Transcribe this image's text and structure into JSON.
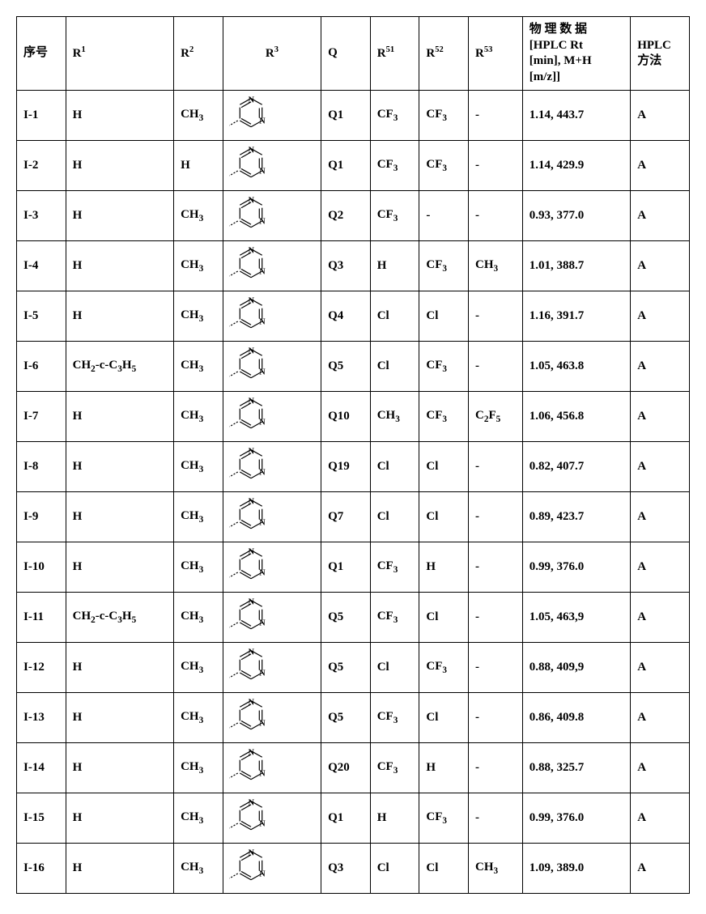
{
  "headers": {
    "seq": "序号",
    "r1": "R",
    "r1_sup": "1",
    "r2": "R",
    "r2_sup": "2",
    "r3": "R",
    "r3_sup": "3",
    "q": "Q",
    "r51": "R",
    "r51_sup": "51",
    "r52": "R",
    "r52_sup": "52",
    "r53": "R",
    "r53_sup": "53",
    "hplc_line1": "物 理 数 据",
    "hplc_line2": "[HPLC  Rt",
    "hplc_line3": "[min], M+H",
    "hplc_line4": "[m/z]]",
    "method_line1": "HPLC",
    "method_line2": "方法"
  },
  "rows": [
    {
      "seq": "I-1",
      "r1": "H",
      "r2": "CH",
      "r2_sub": "3",
      "r3": "pyrimidine",
      "q": "Q1",
      "r51": "CF",
      "r51_sub": "3",
      "r52": "CF",
      "r52_sub": "3",
      "r53": "-",
      "hplc": "1.14, 443.7",
      "method": "A"
    },
    {
      "seq": "I-2",
      "r1": "H",
      "r2": "H",
      "r2_sub": "",
      "r3": "pyrimidine",
      "q": "Q1",
      "r51": "CF",
      "r51_sub": "3",
      "r52": "CF",
      "r52_sub": "3",
      "r53": "-",
      "hplc": "1.14, 429.9",
      "method": "A"
    },
    {
      "seq": "I-3",
      "r1": "H",
      "r2": "CH",
      "r2_sub": "3",
      "r3": "pyrimidine",
      "q": "Q2",
      "r51": "CF",
      "r51_sub": "3",
      "r52": "-",
      "r52_sub": "",
      "r53": "-",
      "hplc": "0.93, 377.0",
      "method": "A"
    },
    {
      "seq": "I-4",
      "r1": "H",
      "r2": "CH",
      "r2_sub": "3",
      "r3": "pyrimidine",
      "q": "Q3",
      "r51": "H",
      "r51_sub": "",
      "r52": "CF",
      "r52_sub": "3",
      "r53": "CH",
      "r53_sub": "3",
      "hplc": "1.01, 388.7",
      "method": "A"
    },
    {
      "seq": "I-5",
      "r1": "H",
      "r2": "CH",
      "r2_sub": "3",
      "r3": "pyrimidine",
      "q": "Q4",
      "r51": "Cl",
      "r51_sub": "",
      "r52": "Cl",
      "r52_sub": "",
      "r53": "-",
      "hplc": "1.16, 391.7",
      "method": "A"
    },
    {
      "seq": "I-6",
      "r1": "CH",
      "r1_sub": "2",
      "r1_suffix": "-c-C",
      "r1_sub2": "3",
      "r1_suffix2": "H",
      "r1_sub3": "5",
      "r2": "CH",
      "r2_sub": "3",
      "r3": "pyrimidine",
      "q": "Q5",
      "r51": "Cl",
      "r51_sub": "",
      "r52": "CF",
      "r52_sub": "3",
      "r53": "-",
      "hplc": "1.05, 463.8",
      "method": "A"
    },
    {
      "seq": "I-7",
      "r1": "H",
      "r2": "CH",
      "r2_sub": "3",
      "r3": "pyrimidine",
      "q": "Q10",
      "r51": "CH",
      "r51_sub": "3",
      "r52": "CF",
      "r52_sub": "3",
      "r53": "C",
      "r53_sub": "2",
      "r53_suffix": "F",
      "r53_sub2": "5",
      "hplc": "1.06, 456.8",
      "method": "A"
    },
    {
      "seq": "I-8",
      "r1": "H",
      "r2": "CH",
      "r2_sub": "3",
      "r3": "pyrimidine",
      "q": "Q19",
      "r51": "Cl",
      "r51_sub": "",
      "r52": "Cl",
      "r52_sub": "",
      "r53": "-",
      "hplc": "0.82, 407.7",
      "method": "A"
    },
    {
      "seq": "I-9",
      "r1": "H",
      "r2": "CH",
      "r2_sub": "3",
      "r3": "pyrimidine",
      "q": "Q7",
      "r51": "Cl",
      "r51_sub": "",
      "r52": "Cl",
      "r52_sub": "",
      "r53": "-",
      "hplc": "0.89, 423.7",
      "method": "A"
    },
    {
      "seq": "I-10",
      "r1": "H",
      "r2": "CH",
      "r2_sub": "3",
      "r3": "pyrimidine",
      "q": "Q1",
      "r51": "CF",
      "r51_sub": "3",
      "r52": "H",
      "r52_sub": "",
      "r53": "-",
      "hplc": "0.99, 376.0",
      "method": "A"
    },
    {
      "seq": "I-11",
      "r1": "CH",
      "r1_sub": "2",
      "r1_suffix": "-c-C",
      "r1_sub2": "3",
      "r1_suffix2": "H",
      "r1_sub3": "5",
      "r2": "CH",
      "r2_sub": "3",
      "r3": "pyrimidine",
      "q": "Q5",
      "r51": "CF",
      "r51_sub": "3",
      "r52": "Cl",
      "r52_sub": "",
      "r53": "-",
      "hplc": "1.05, 463,9",
      "method": "A"
    },
    {
      "seq": "I-12",
      "r1": "H",
      "r2": "CH",
      "r2_sub": "3",
      "r3": "pyrimidine",
      "q": "Q5",
      "r51": "Cl",
      "r51_sub": "",
      "r52": "CF",
      "r52_sub": "3",
      "r53": "-",
      "hplc": "0.88, 409,9",
      "method": "A"
    },
    {
      "seq": "I-13",
      "r1": "H",
      "r2": "CH",
      "r2_sub": "3",
      "r3": "pyrimidine",
      "q": "Q5",
      "r51": "CF",
      "r51_sub": "3",
      "r52": "Cl",
      "r52_sub": "",
      "r53": "-",
      "hplc": "0.86, 409.8",
      "method": "A"
    },
    {
      "seq": "I-14",
      "r1": "H",
      "r2": "CH",
      "r2_sub": "3",
      "r3": "pyrimidine",
      "q": "Q20",
      "r51": "CF",
      "r51_sub": "3",
      "r52": "H",
      "r52_sub": "",
      "r53": "-",
      "hplc": "0.88, 325.7",
      "method": "A"
    },
    {
      "seq": "I-15",
      "r1": "H",
      "r2": "CH",
      "r2_sub": "3",
      "r3": "pyrimidine",
      "q": "Q1",
      "r51": "H",
      "r51_sub": "",
      "r52": "CF",
      "r52_sub": "3",
      "r53": "-",
      "hplc": "0.99, 376.0",
      "method": "A"
    },
    {
      "seq": "I-16",
      "r1": "H",
      "r2": "CH",
      "r2_sub": "3",
      "r3": "pyrimidine",
      "q": "Q3",
      "r51": "Cl",
      "r51_sub": "",
      "r52": "Cl",
      "r52_sub": "",
      "r53": "CH",
      "r53_sub": "3",
      "hplc": "1.09, 389.0",
      "method": "A"
    }
  ],
  "structure_svg": {
    "hex_stroke": "#000000",
    "hex_fill": "none",
    "n_label": "N",
    "n_fontsize": 12
  }
}
